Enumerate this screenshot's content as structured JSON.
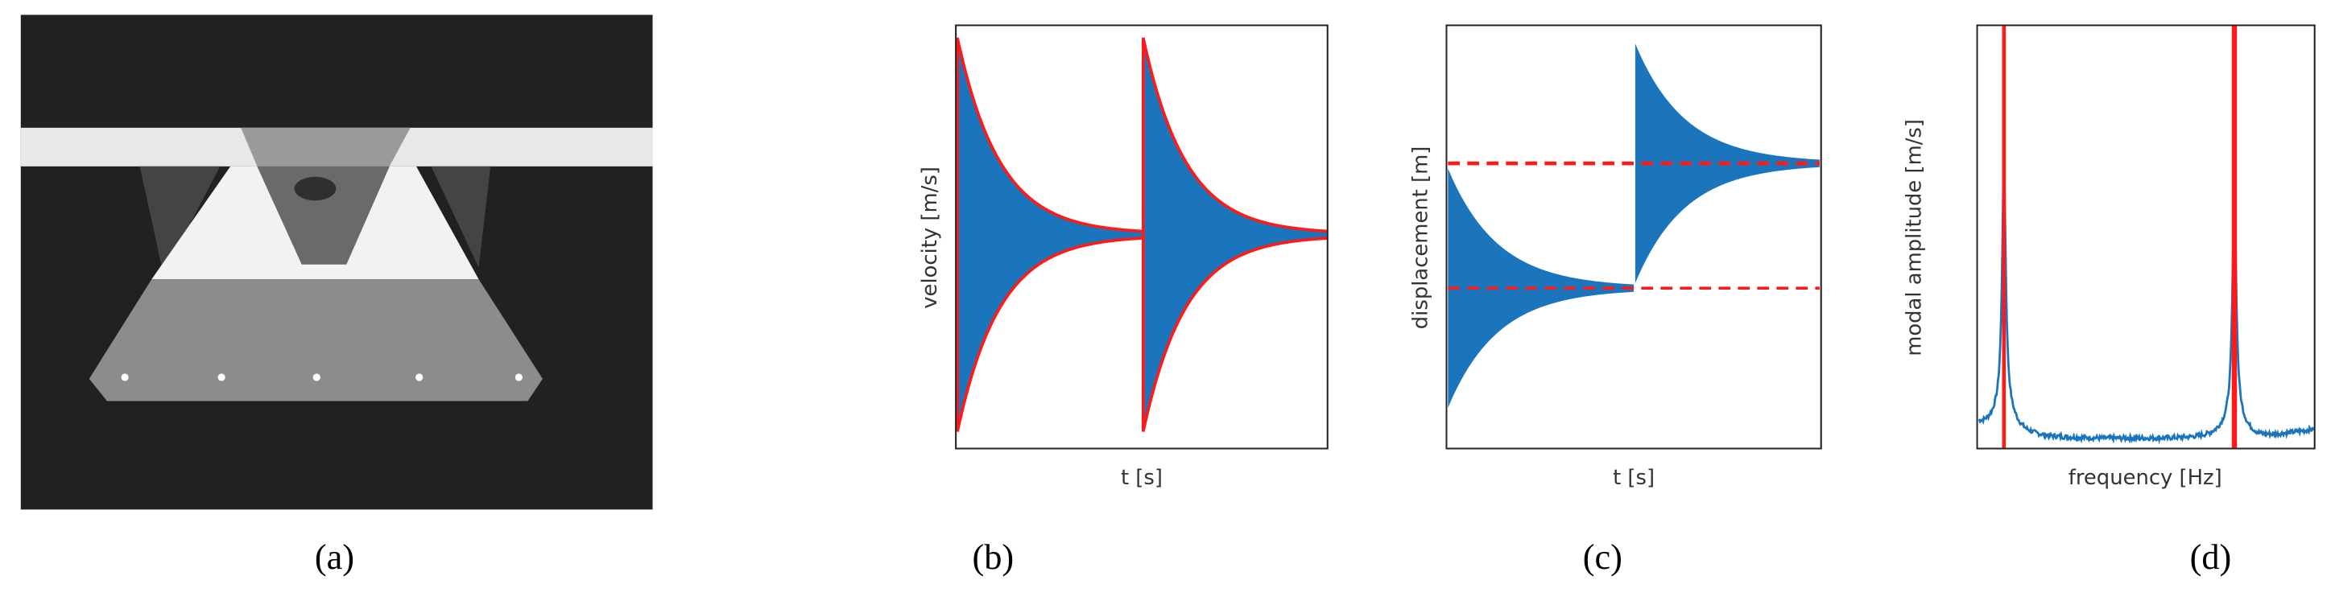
{
  "panels": [
    {
      "label": "(a)"
    },
    {
      "label": "(b)",
      "xlabel": "t [s]",
      "ylabel": "velocity [m/s]"
    },
    {
      "label": "(c)",
      "xlabel": "t [s]",
      "ylabel": "displacement [m]"
    },
    {
      "label": "(d)",
      "xlabel": "frequency [Hz]",
      "ylabel": "modal amplitude [m/s]"
    }
  ]
}
